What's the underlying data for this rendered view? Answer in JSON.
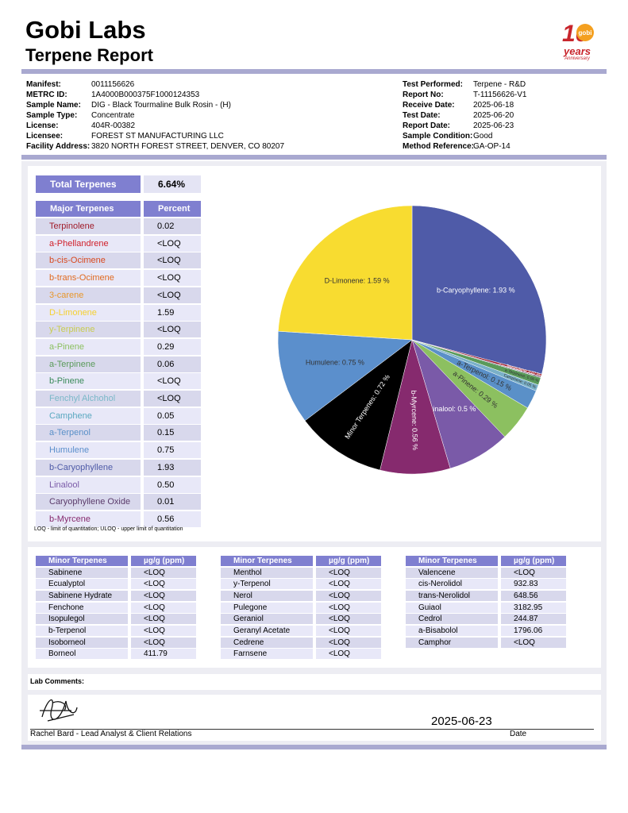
{
  "header": {
    "title": "Gobi Labs",
    "subtitle": "Terpene Report",
    "logo": {
      "number": "10",
      "brand": "gobi",
      "line1": "years",
      "line2": "Anniversary"
    }
  },
  "info": {
    "left": [
      {
        "label": "Manifest:",
        "value": "0011156626"
      },
      {
        "label": "METRC ID:",
        "value": "1A4000B000375F1000124353"
      },
      {
        "label": "Sample Name:",
        "value": "DIG - Black Tourmaline Bulk Rosin - (H)"
      },
      {
        "label": "Sample Type:",
        "value": "Concentrate"
      },
      {
        "label": "License:",
        "value": "404R-00382"
      },
      {
        "label": "Licensee:",
        "value": "FOREST ST MANUFACTURING LLC"
      },
      {
        "label": "Facility Address:",
        "value": "3820 NORTH FOREST STREET, DENVER, CO 80207"
      }
    ],
    "right": [
      {
        "label": "Test Performed:",
        "value": "Terpene - R&D"
      },
      {
        "label": "Report No:",
        "value": "T-11156626-V1"
      },
      {
        "label": "Receive Date:",
        "value": "2025-06-18"
      },
      {
        "label": "Test Date:",
        "value": "2025-06-20"
      },
      {
        "label": "Report Date:",
        "value": "2025-06-23"
      },
      {
        "label": "Sample Condition:",
        "value": "Good"
      },
      {
        "label": "Method Reference:",
        "value": "GA-OP-14"
      }
    ]
  },
  "total": {
    "label": "Total Terpenes",
    "value": "6.64%"
  },
  "major": {
    "columns": [
      "Major Terpenes",
      "Percent"
    ],
    "rows": [
      {
        "name": "Terpinolene",
        "value": "0.02",
        "color": "#a01c2a"
      },
      {
        "name": "a-Phellandrene",
        "value": "<LOQ",
        "color": "#d0202a"
      },
      {
        "name": "b-cis-Ocimene",
        "value": "<LOQ",
        "color": "#d84a20"
      },
      {
        "name": "b-trans-Ocimene",
        "value": "<LOQ",
        "color": "#e06a20"
      },
      {
        "name": "3-carene",
        "value": "<LOQ",
        "color": "#e8962a"
      },
      {
        "name": "D-Limonene",
        "value": "1.59",
        "color": "#f5d030"
      },
      {
        "name": "y-Terpinene",
        "value": "<LOQ",
        "color": "#c8cc50"
      },
      {
        "name": "a-Pinene",
        "value": "0.29",
        "color": "#8cc060"
      },
      {
        "name": "a-Terpinene",
        "value": "0.06",
        "color": "#5a9a5a"
      },
      {
        "name": "b-Pinene",
        "value": "<LOQ",
        "color": "#3a8a5a"
      },
      {
        "name": "Fenchyl Alchohol",
        "value": "<LOQ",
        "color": "#7ab8c8"
      },
      {
        "name": "Camphene",
        "value": "0.05",
        "color": "#5aa8c0"
      },
      {
        "name": "a-Terpenol",
        "value": "0.15",
        "color": "#5a90c8"
      },
      {
        "name": "Humulene",
        "value": "0.75",
        "color": "#5b8fcc"
      },
      {
        "name": "b-Caryophyllene",
        "value": "1.93",
        "color": "#4f5ba8"
      },
      {
        "name": "Linalool",
        "value": "0.50",
        "color": "#7a5aa8"
      },
      {
        "name": "Caryophyllene Oxide",
        "value": "0.01",
        "color": "#5a3a6a"
      },
      {
        "name": "b-Myrcene",
        "value": "0.56",
        "color": "#862a6e"
      }
    ]
  },
  "note": "LOQ - limit of quantitation; ULOQ - upper limit of quantitation",
  "chart_data": {
    "type": "pie",
    "labels": [
      "b-Caryophyllene: 1.93 %",
      "Terpinolene: 0.02 %",
      "Caryophyllene Oxide: 0.01 %",
      "a-Terpinene: 0.06 %",
      "Camphene: 0.05 %",
      "a-Terpenol: 0.15 %",
      "a-Pinene: 0.29 %",
      "Linalool: 0.5 %",
      "b-Myrcene: 0.56 %",
      "Minor Terpenes: 0.72 %",
      "Humulene: 0.75 %",
      "D-Limonene: 1.59 %"
    ],
    "values": [
      1.93,
      0.02,
      0.01,
      0.06,
      0.05,
      0.15,
      0.29,
      0.5,
      0.56,
      0.72,
      0.75,
      1.59
    ],
    "colors": [
      "#4f5ba8",
      "#a01c2a",
      "#5a3a6a",
      "#5a9a5a",
      "#7ab0c8",
      "#5a90c8",
      "#8cc060",
      "#7a5aa8",
      "#862a6e",
      "#000000",
      "#5b8fcc",
      "#f8dc30"
    ]
  },
  "minor": [
    {
      "columns": [
        "Minor Terpenes",
        "µg/g (ppm)"
      ],
      "rows": [
        [
          "Sabinene",
          "<LOQ"
        ],
        [
          "Ecualyptol",
          "<LOQ"
        ],
        [
          "Sabinene Hydrate",
          "<LOQ"
        ],
        [
          "Fenchone",
          "<LOQ"
        ],
        [
          "Isopulegol",
          "<LOQ"
        ],
        [
          "b-Terpenol",
          "<LOQ"
        ],
        [
          "Isoborneol",
          "<LOQ"
        ],
        [
          "Borneol",
          "411.79"
        ]
      ]
    },
    {
      "columns": [
        "Minor Terpenes",
        "µg/g (ppm)"
      ],
      "rows": [
        [
          "Menthol",
          "<LOQ"
        ],
        [
          "y-Terpenol",
          "<LOQ"
        ],
        [
          "Nerol",
          "<LOQ"
        ],
        [
          "Pulegone",
          "<LOQ"
        ],
        [
          "Geraniol",
          "<LOQ"
        ],
        [
          "Geranyl Acetate",
          "<LOQ"
        ],
        [
          "Cedrene",
          "<LOQ"
        ],
        [
          "Farnsene",
          "<LOQ"
        ]
      ]
    },
    {
      "columns": [
        "Minor Terpenes",
        "µg/g (ppm)"
      ],
      "rows": [
        [
          "Valencene",
          "<LOQ"
        ],
        [
          "cis-Nerolidol",
          "932.83"
        ],
        [
          "trans-Nerolidol",
          "648.56"
        ],
        [
          "Guiaol",
          "3182.95"
        ],
        [
          "Cedrol",
          "244.87"
        ],
        [
          "a-Bisabolol",
          "1796.06"
        ],
        [
          "Camphor",
          "<LOQ"
        ]
      ]
    }
  ],
  "comments": {
    "label": "Lab Comments:"
  },
  "signature": {
    "date": "2025-06-23",
    "signer": "Rachel Bard - Lead Analyst & Client Relations",
    "date_label": "Date"
  }
}
